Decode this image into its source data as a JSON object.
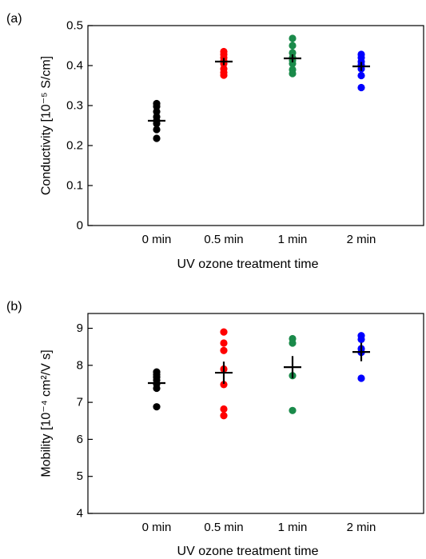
{
  "chart_data": [
    {
      "type": "scatter",
      "panel_label": "(a)",
      "xlabel": "UV ozone treatment time",
      "ylabel": "Conductivity [10⁻⁵ S/cm]",
      "categories": [
        "0 min",
        "0.5 min",
        "1 min",
        "2 min"
      ],
      "ylim": [
        0,
        0.5
      ],
      "yticks": [
        {
          "value": 0,
          "label": "0"
        },
        {
          "value": 0.1,
          "label": "0.1"
        },
        {
          "value": 0.2,
          "label": "0.2"
        },
        {
          "value": 0.3,
          "label": "0.3"
        },
        {
          "value": 0.4,
          "label": "0.4"
        },
        {
          "value": 0.5,
          "label": "0.5"
        }
      ],
      "grid": false,
      "series": [
        {
          "category": "0 min",
          "color": "#000000",
          "points": [
            0.305,
            0.298,
            0.285,
            0.272,
            0.262,
            0.255,
            0.24,
            0.218
          ],
          "mean": 0.262,
          "error": 0.012
        },
        {
          "category": "0.5 min",
          "color": "#ff0000",
          "points": [
            0.435,
            0.428,
            0.42,
            0.412,
            0.405,
            0.392,
            0.383,
            0.376
          ],
          "mean": 0.41,
          "error": 0.009
        },
        {
          "category": "1 min",
          "color": "#1a8a4a",
          "points": [
            0.468,
            0.45,
            0.432,
            0.42,
            0.413,
            0.405,
            0.39,
            0.38
          ],
          "mean": 0.418,
          "error": 0.01
        },
        {
          "category": "2 min",
          "color": "#0000ff",
          "points": [
            0.428,
            0.42,
            0.41,
            0.402,
            0.392,
            0.375,
            0.345
          ],
          "mean": 0.398,
          "error": 0.011
        }
      ]
    },
    {
      "type": "scatter",
      "panel_label": "(b)",
      "xlabel": "UV ozone treatment time",
      "ylabel": "Mobility [10⁻⁴ cm²/V s]",
      "categories": [
        "0 min",
        "0.5 min",
        "1 min",
        "2 min"
      ],
      "ylim": [
        4,
        9.4
      ],
      "yticks": [
        {
          "value": 4,
          "label": "4"
        },
        {
          "value": 5,
          "label": "5"
        },
        {
          "value": 6,
          "label": "6"
        },
        {
          "value": 7,
          "label": "7"
        },
        {
          "value": 8,
          "label": "8"
        },
        {
          "value": 9,
          "label": "9"
        }
      ],
      "grid": false,
      "series": [
        {
          "category": "0 min",
          "color": "#000000",
          "points": [
            7.82,
            7.75,
            7.68,
            7.6,
            7.5,
            7.38,
            6.88
          ],
          "mean": 7.52,
          "error": 0.12
        },
        {
          "category": "0.5 min",
          "color": "#ff0000",
          "points": [
            8.9,
            8.6,
            8.4,
            7.9,
            7.48,
            6.82,
            6.64
          ],
          "mean": 7.8,
          "error": 0.3
        },
        {
          "category": "1 min",
          "color": "#1a8a4a",
          "points": [
            8.72,
            8.6,
            7.72,
            6.78
          ],
          "mean": 7.95,
          "error": 0.3
        },
        {
          "category": "2 min",
          "color": "#0000ff",
          "points": [
            8.8,
            8.7,
            8.45,
            8.35,
            7.65
          ],
          "mean": 8.36,
          "error": 0.25
        }
      ]
    }
  ]
}
